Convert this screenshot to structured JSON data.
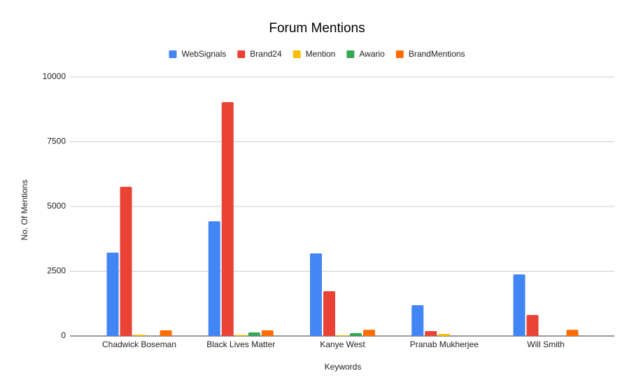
{
  "chart_data": {
    "type": "bar",
    "title": "Forum Mentions",
    "x_label": "Keywords",
    "y_label": "No. Of Mentions",
    "categories": [
      "Chadwick Boseman",
      "Black Lives Matter",
      "Kanye West",
      "Pranab Mukherjee",
      "Will Smith"
    ],
    "series": [
      {
        "name": "WebSignals",
        "color": "#4285f4",
        "values": [
          3220,
          4430,
          3190,
          1190,
          2380
        ]
      },
      {
        "name": "Brand24",
        "color": "#ea4335",
        "values": [
          5760,
          9030,
          1730,
          190,
          810
        ]
      },
      {
        "name": "Mention",
        "color": "#fbbc04",
        "values": [
          50,
          40,
          30,
          80,
          0
        ]
      },
      {
        "name": "Awario",
        "color": "#34a853",
        "values": [
          0,
          140,
          110,
          0,
          0
        ]
      },
      {
        "name": "BrandMentions",
        "color": "#ff6d01",
        "values": [
          220,
          220,
          240,
          0,
          240
        ]
      }
    ],
    "ylim": [
      0,
      10000
    ],
    "yticks": [
      0,
      2500,
      5000,
      7500,
      10000
    ],
    "grid": true
  }
}
